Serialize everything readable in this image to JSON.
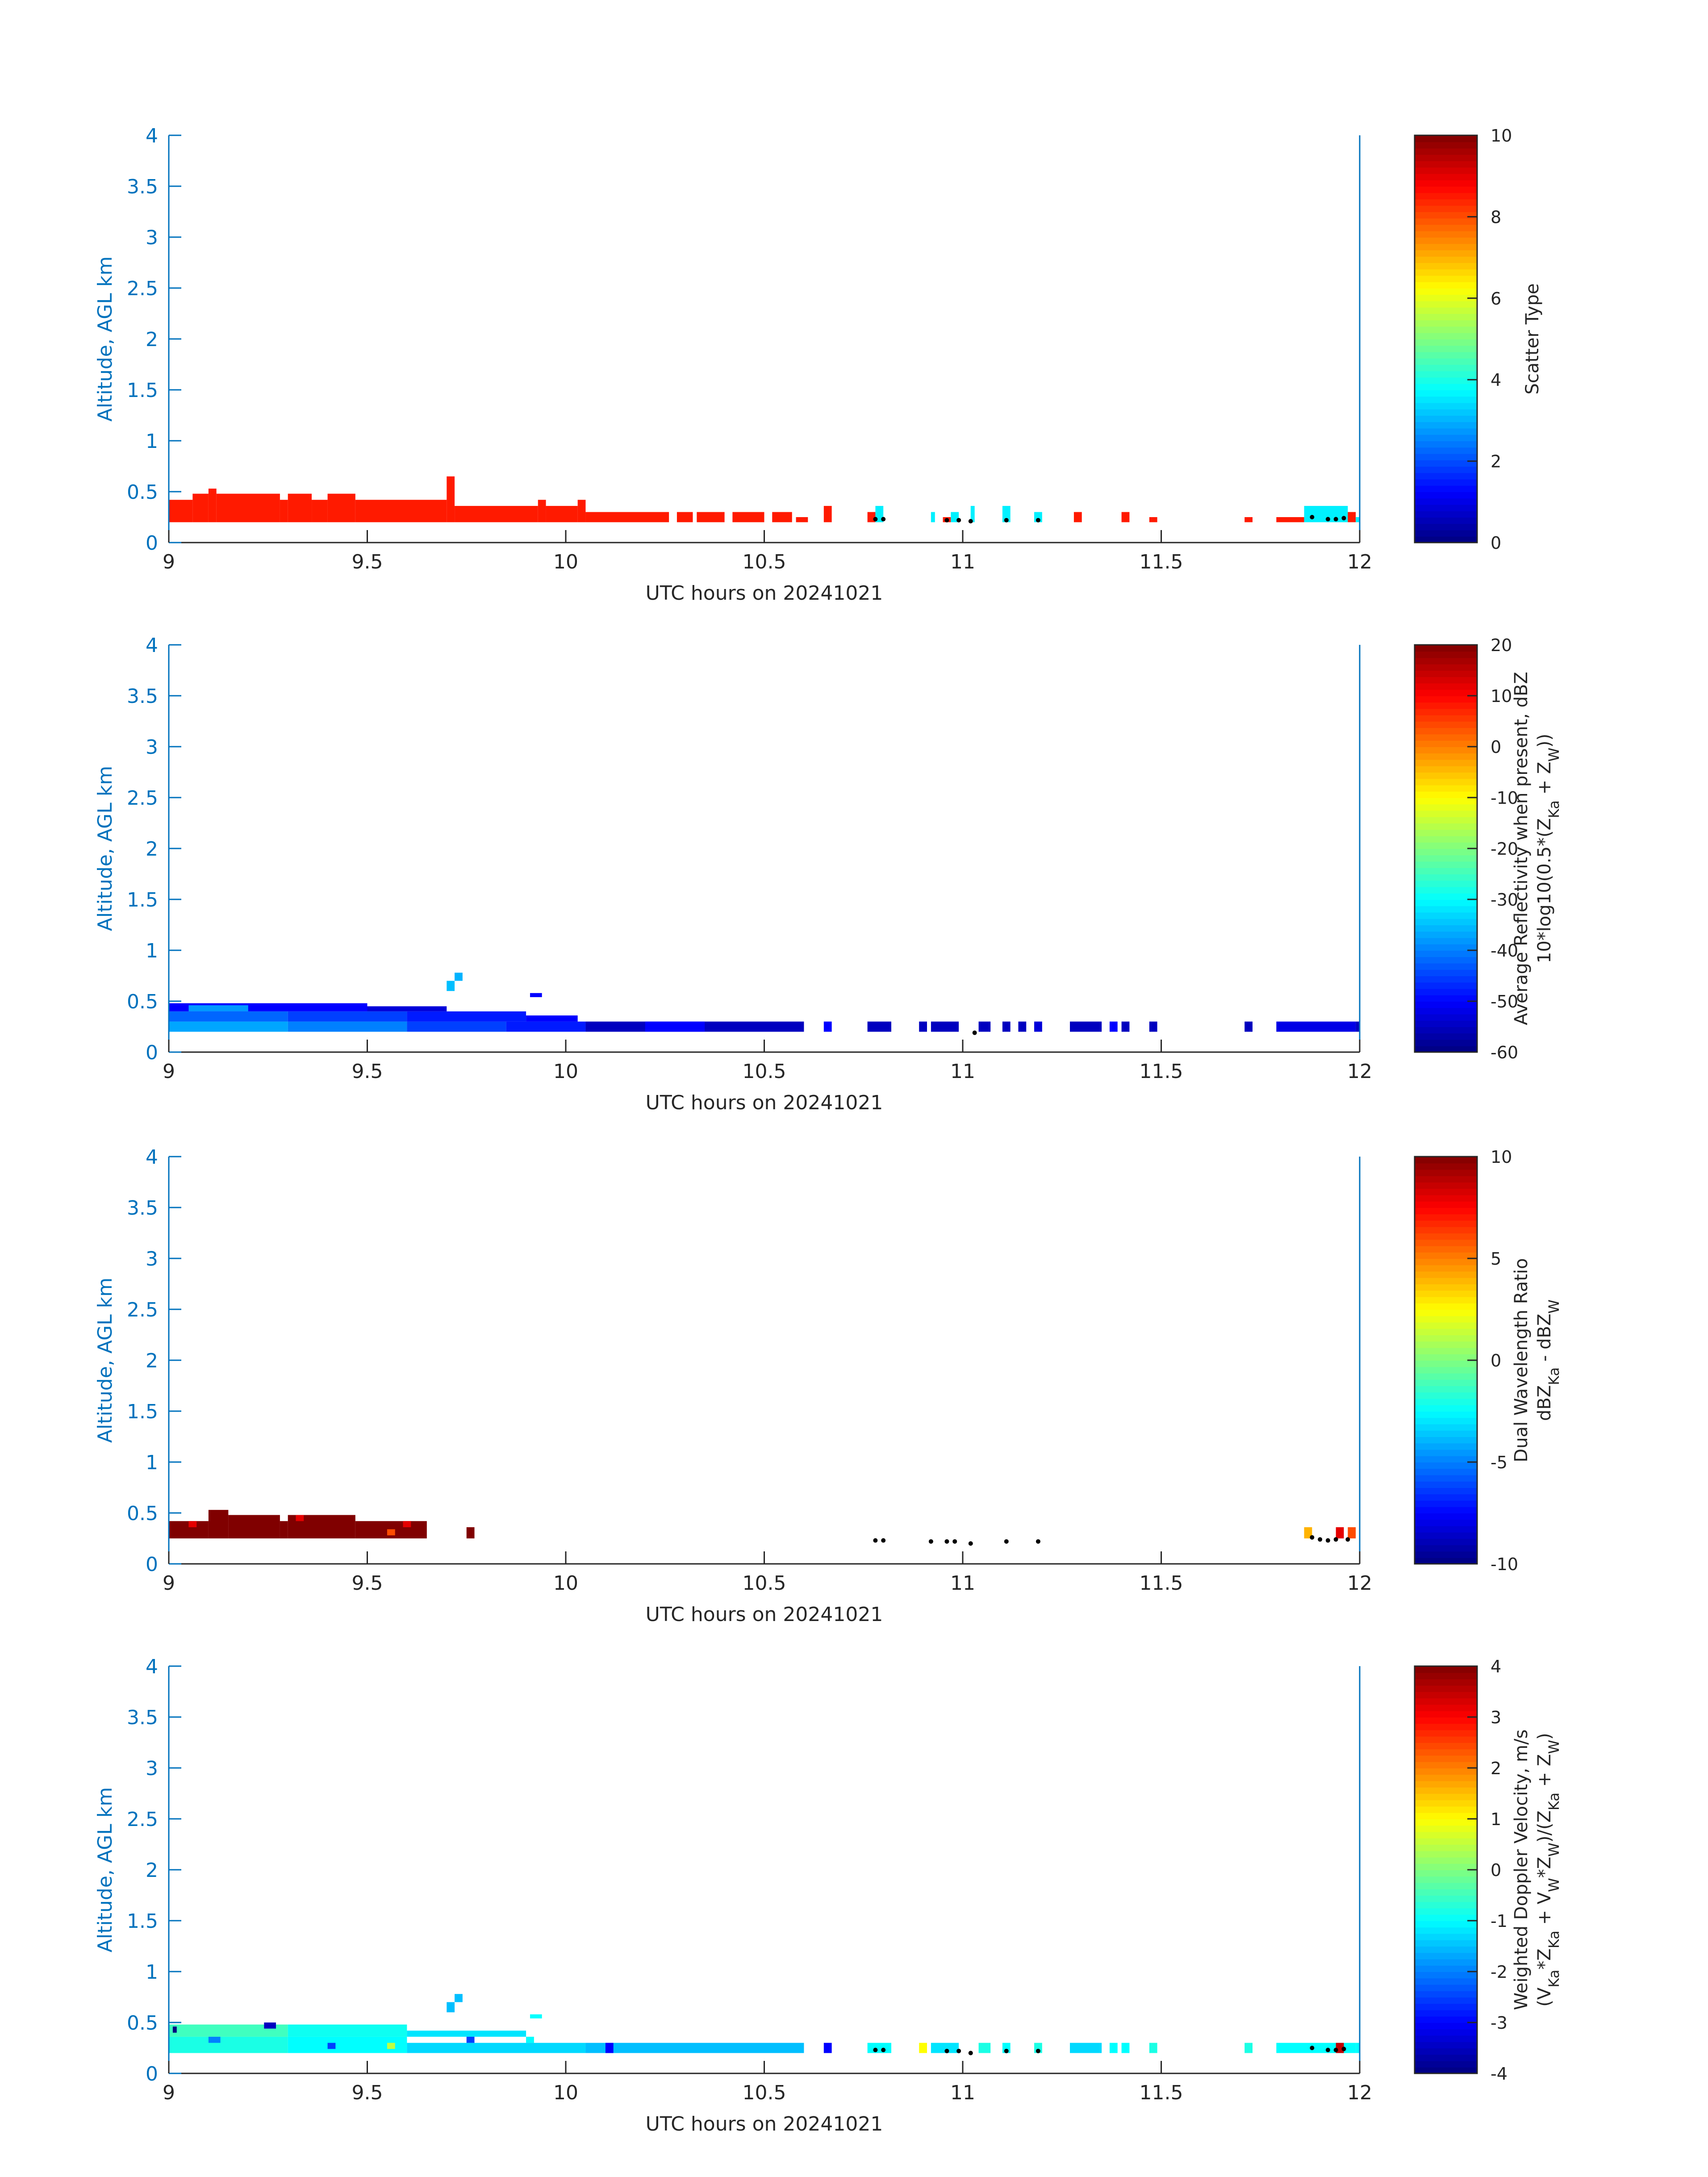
{
  "figure": {
    "x_axis_label": "UTC hours on 20241021",
    "y_axis_label": "Altitude, AGL km",
    "colors": {
      "axis": "#0072BD",
      "text": "#262626",
      "marker": "#000000"
    },
    "colormap": "jet"
  },
  "chart_data": [
    {
      "type": "heatmap",
      "xlabel": "UTC hours on 20241021",
      "ylabel": "Altitude, AGL km",
      "xlim": [
        9,
        12
      ],
      "ylim": [
        0,
        4
      ],
      "x_ticks": [
        "9",
        "9.5",
        "10",
        "10.5",
        "11",
        "11.5",
        "12"
      ],
      "y_ticks": [
        "0",
        "0.5",
        "1",
        "1.5",
        "2",
        "2.5",
        "3",
        "3.5",
        "4"
      ],
      "colorbar": {
        "label_lines": [
          "Scatter Type"
        ],
        "range": [
          0,
          10
        ],
        "ticks": [
          "0",
          "2",
          "4",
          "6",
          "8",
          "10"
        ]
      },
      "cells": [
        [
          9.0,
          9.06,
          0.2,
          0.42,
          8.5
        ],
        [
          9.06,
          9.1,
          0.2,
          0.48,
          8.5
        ],
        [
          9.1,
          9.12,
          0.2,
          0.53,
          8.5
        ],
        [
          9.12,
          9.28,
          0.2,
          0.48,
          8.5
        ],
        [
          9.28,
          9.3,
          0.2,
          0.42,
          8.5
        ],
        [
          9.3,
          9.36,
          0.2,
          0.48,
          8.5
        ],
        [
          9.36,
          9.4,
          0.2,
          0.42,
          8.5
        ],
        [
          9.4,
          9.47,
          0.2,
          0.48,
          8.5
        ],
        [
          9.47,
          9.7,
          0.2,
          0.42,
          8.5
        ],
        [
          9.7,
          9.72,
          0.2,
          0.65,
          8.5
        ],
        [
          9.72,
          9.93,
          0.2,
          0.36,
          8.5
        ],
        [
          9.93,
          9.95,
          0.2,
          0.42,
          8.5
        ],
        [
          9.95,
          10.03,
          0.2,
          0.36,
          8.5
        ],
        [
          10.03,
          10.05,
          0.2,
          0.42,
          8.5
        ],
        [
          10.05,
          10.26,
          0.2,
          0.3,
          8.5
        ],
        [
          10.28,
          10.32,
          0.2,
          0.3,
          8.5
        ],
        [
          10.33,
          10.4,
          0.2,
          0.3,
          8.5
        ],
        [
          10.42,
          10.5,
          0.2,
          0.3,
          8.5
        ],
        [
          10.52,
          10.57,
          0.2,
          0.3,
          8.5
        ],
        [
          10.58,
          10.61,
          0.2,
          0.25,
          8.5
        ],
        [
          10.65,
          10.67,
          0.2,
          0.36,
          8.5
        ],
        [
          10.76,
          10.78,
          0.2,
          0.3,
          8.5
        ],
        [
          10.78,
          10.8,
          0.2,
          0.36,
          3.6
        ],
        [
          10.92,
          10.93,
          0.2,
          0.3,
          3.6
        ],
        [
          10.95,
          10.97,
          0.2,
          0.25,
          8.5
        ],
        [
          10.97,
          10.99,
          0.2,
          0.3,
          3.6
        ],
        [
          11.02,
          11.03,
          0.2,
          0.36,
          3.6
        ],
        [
          11.1,
          11.12,
          0.2,
          0.36,
          3.6
        ],
        [
          11.18,
          11.2,
          0.2,
          0.3,
          3.6
        ],
        [
          11.28,
          11.3,
          0.2,
          0.3,
          8.5
        ],
        [
          11.4,
          11.42,
          0.2,
          0.3,
          8.5
        ],
        [
          11.47,
          11.49,
          0.2,
          0.25,
          8.5
        ],
        [
          11.71,
          11.73,
          0.2,
          0.25,
          8.5
        ],
        [
          11.79,
          11.86,
          0.2,
          0.25,
          8.5
        ],
        [
          11.86,
          11.97,
          0.2,
          0.36,
          3.6
        ],
        [
          11.97,
          11.99,
          0.2,
          0.3,
          8.5
        ],
        [
          11.99,
          12.0,
          0.2,
          0.25,
          3.6
        ]
      ],
      "markers": [
        [
          10.78,
          0.23
        ],
        [
          10.8,
          0.23
        ],
        [
          10.96,
          0.22
        ],
        [
          10.99,
          0.22
        ],
        [
          11.02,
          0.21
        ],
        [
          11.11,
          0.22
        ],
        [
          11.19,
          0.22
        ],
        [
          11.88,
          0.25
        ],
        [
          11.92,
          0.23
        ],
        [
          11.94,
          0.23
        ],
        [
          11.96,
          0.24
        ]
      ]
    },
    {
      "type": "heatmap",
      "xlabel": "UTC hours on 20241021",
      "ylabel": "Altitude, AGL km",
      "xlim": [
        9,
        12
      ],
      "ylim": [
        0,
        4
      ],
      "x_ticks": [
        "9",
        "9.5",
        "10",
        "10.5",
        "11",
        "11.5",
        "12"
      ],
      "y_ticks": [
        "0",
        "0.5",
        "1",
        "1.5",
        "2",
        "2.5",
        "3",
        "3.5",
        "4"
      ],
      "colorbar": {
        "label_lines": [
          "Average Reflectivity when present, dBZ",
          "10*log10(0.5*(Z_Ka + Z_W))"
        ],
        "range": [
          -60,
          20
        ],
        "ticks": [
          "-60",
          "-50",
          "-40",
          "-30",
          "-20",
          "-10",
          "0",
          "10",
          "20"
        ]
      },
      "cells": [
        [
          9.0,
          9.3,
          0.2,
          0.3,
          -37
        ],
        [
          9.3,
          9.6,
          0.2,
          0.3,
          -40
        ],
        [
          9.6,
          9.85,
          0.2,
          0.3,
          -45
        ],
        [
          9.85,
          10.05,
          0.2,
          0.3,
          -48
        ],
        [
          9.0,
          9.3,
          0.3,
          0.4,
          -42
        ],
        [
          9.3,
          9.6,
          0.3,
          0.4,
          -45
        ],
        [
          9.6,
          9.9,
          0.3,
          0.4,
          -48
        ],
        [
          9.9,
          10.03,
          0.3,
          0.36,
          -50
        ],
        [
          9.0,
          9.5,
          0.4,
          0.48,
          -50
        ],
        [
          9.05,
          9.2,
          0.4,
          0.46,
          -38
        ],
        [
          9.5,
          9.7,
          0.4,
          0.45,
          -53
        ],
        [
          9.7,
          9.72,
          0.6,
          0.7,
          -35
        ],
        [
          9.72,
          9.74,
          0.7,
          0.78,
          -36
        ],
        [
          9.91,
          9.94,
          0.54,
          0.58,
          -50
        ],
        [
          10.05,
          10.6,
          0.2,
          0.3,
          -55
        ],
        [
          10.2,
          10.35,
          0.2,
          0.3,
          -50
        ],
        [
          10.65,
          10.67,
          0.2,
          0.3,
          -50
        ],
        [
          10.76,
          10.82,
          0.2,
          0.3,
          -55
        ],
        [
          10.89,
          10.91,
          0.2,
          0.3,
          -55
        ],
        [
          10.92,
          10.99,
          0.2,
          0.3,
          -55
        ],
        [
          11.04,
          11.07,
          0.2,
          0.3,
          -55
        ],
        [
          11.1,
          11.12,
          0.2,
          0.3,
          -55
        ],
        [
          11.14,
          11.16,
          0.2,
          0.3,
          -55
        ],
        [
          11.18,
          11.2,
          0.2,
          0.3,
          -53
        ],
        [
          11.27,
          11.35,
          0.2,
          0.3,
          -55
        ],
        [
          11.37,
          11.39,
          0.2,
          0.3,
          -50
        ],
        [
          11.4,
          11.42,
          0.2,
          0.3,
          -55
        ],
        [
          11.47,
          11.49,
          0.2,
          0.3,
          -55
        ],
        [
          11.71,
          11.73,
          0.2,
          0.3,
          -55
        ],
        [
          11.79,
          11.99,
          0.2,
          0.3,
          -52
        ],
        [
          11.99,
          12.0,
          0.2,
          0.3,
          -55
        ]
      ],
      "markers": [
        [
          11.03,
          0.19
        ]
      ]
    },
    {
      "type": "heatmap",
      "xlabel": "UTC hours on 20241021",
      "ylabel": "Altitude, AGL km",
      "xlim": [
        9,
        12
      ],
      "ylim": [
        0,
        4
      ],
      "x_ticks": [
        "9",
        "9.5",
        "10",
        "10.5",
        "11",
        "11.5",
        "12"
      ],
      "y_ticks": [
        "0",
        "0.5",
        "1",
        "1.5",
        "2",
        "2.5",
        "3",
        "3.5",
        "4"
      ],
      "colorbar": {
        "label_lines": [
          "Dual Wavelength Ratio",
          "dBZ_Ka - dBZ_W"
        ],
        "range": [
          -10,
          10
        ],
        "ticks": [
          "-10",
          "-5",
          "0",
          "5",
          "10"
        ]
      },
      "cells": [
        [
          9.0,
          9.1,
          0.25,
          0.42,
          10
        ],
        [
          9.1,
          9.15,
          0.25,
          0.53,
          10
        ],
        [
          9.15,
          9.28,
          0.25,
          0.48,
          10
        ],
        [
          9.28,
          9.3,
          0.25,
          0.42,
          10
        ],
        [
          9.3,
          9.47,
          0.25,
          0.48,
          10
        ],
        [
          9.47,
          9.65,
          0.25,
          0.42,
          10
        ],
        [
          9.05,
          9.07,
          0.36,
          0.42,
          8
        ],
        [
          9.32,
          9.34,
          0.42,
          0.48,
          8
        ],
        [
          9.55,
          9.57,
          0.28,
          0.34,
          6
        ],
        [
          9.59,
          9.61,
          0.36,
          0.42,
          8
        ],
        [
          9.75,
          9.77,
          0.25,
          0.36,
          10
        ],
        [
          11.86,
          11.88,
          0.25,
          0.36,
          4
        ],
        [
          11.94,
          11.96,
          0.25,
          0.36,
          8
        ],
        [
          11.97,
          11.99,
          0.25,
          0.36,
          6
        ]
      ],
      "markers": [
        [
          10.78,
          0.23
        ],
        [
          10.8,
          0.23
        ],
        [
          10.92,
          0.22
        ],
        [
          10.96,
          0.22
        ],
        [
          10.98,
          0.22
        ],
        [
          11.02,
          0.2
        ],
        [
          11.11,
          0.22
        ],
        [
          11.19,
          0.22
        ],
        [
          11.88,
          0.26
        ],
        [
          11.9,
          0.24
        ],
        [
          11.92,
          0.23
        ],
        [
          11.94,
          0.24
        ],
        [
          11.97,
          0.24
        ]
      ]
    },
    {
      "type": "heatmap",
      "xlabel": "UTC hours on 20241021",
      "ylabel": "Altitude, AGL km",
      "xlim": [
        9,
        12
      ],
      "ylim": [
        0,
        4
      ],
      "x_ticks": [
        "9",
        "9.5",
        "10",
        "10.5",
        "11",
        "11.5",
        "12"
      ],
      "y_ticks": [
        "0",
        "0.5",
        "1",
        "1.5",
        "2",
        "2.5",
        "3",
        "3.5",
        "4"
      ],
      "colorbar": {
        "label_lines": [
          "Weighted Doppler Velocity, m/s",
          "(V_Ka*Z_Ka + V_W*Z_W)/(Z_Ka + Z_W)"
        ],
        "range": [
          -4,
          4
        ],
        "ticks": [
          "-4",
          "-3",
          "-2",
          "-1",
          "0",
          "1",
          "2",
          "3",
          "4"
        ]
      },
      "cells": [
        [
          9.0,
          9.3,
          0.2,
          0.36,
          -0.8
        ],
        [
          9.3,
          9.6,
          0.2,
          0.36,
          -1.0
        ],
        [
          9.6,
          10.05,
          0.2,
          0.3,
          -1.3
        ],
        [
          9.0,
          9.3,
          0.36,
          0.48,
          -0.5
        ],
        [
          9.3,
          9.6,
          0.36,
          0.48,
          -0.9
        ],
        [
          9.6,
          9.9,
          0.36,
          0.42,
          -1.2
        ],
        [
          9.24,
          9.27,
          0.44,
          0.5,
          -3.5
        ],
        [
          9.01,
          9.02,
          0.4,
          0.46,
          -4
        ],
        [
          9.1,
          9.13,
          0.3,
          0.36,
          -2.0
        ],
        [
          9.4,
          9.42,
          0.24,
          0.3,
          -2.5
        ],
        [
          9.55,
          9.57,
          0.24,
          0.3,
          0.5
        ],
        [
          9.75,
          9.77,
          0.3,
          0.36,
          -2.5
        ],
        [
          9.9,
          9.92,
          0.3,
          0.36,
          -1.0
        ],
        [
          9.7,
          9.72,
          0.6,
          0.7,
          -1.5
        ],
        [
          9.72,
          9.74,
          0.7,
          0.78,
          -1.5
        ],
        [
          9.91,
          9.94,
          0.54,
          0.58,
          -1.0
        ],
        [
          10.05,
          10.6,
          0.2,
          0.3,
          -1.5
        ],
        [
          10.1,
          10.12,
          0.2,
          0.3,
          -3.0
        ],
        [
          10.65,
          10.67,
          0.2,
          0.3,
          -3.0
        ],
        [
          10.76,
          10.82,
          0.2,
          0.3,
          -1.0
        ],
        [
          10.89,
          10.91,
          0.2,
          0.3,
          1.0
        ],
        [
          10.92,
          10.99,
          0.2,
          0.3,
          -1.2
        ],
        [
          11.04,
          11.07,
          0.2,
          0.3,
          -0.8
        ],
        [
          11.1,
          11.12,
          0.2,
          0.3,
          -1.0
        ],
        [
          11.18,
          11.2,
          0.2,
          0.3,
          -0.8
        ],
        [
          11.27,
          11.35,
          0.2,
          0.3,
          -1.3
        ],
        [
          11.37,
          11.39,
          0.2,
          0.3,
          -1.0
        ],
        [
          11.4,
          11.42,
          0.2,
          0.3,
          -1.0
        ],
        [
          11.47,
          11.49,
          0.2,
          0.3,
          -0.8
        ],
        [
          11.71,
          11.73,
          0.2,
          0.3,
          -0.8
        ],
        [
          11.79,
          11.99,
          0.2,
          0.3,
          -1.0
        ],
        [
          11.94,
          11.96,
          0.2,
          0.3,
          3.5
        ],
        [
          11.99,
          12.0,
          0.2,
          0.3,
          -1.0
        ]
      ],
      "markers": [
        [
          10.78,
          0.23
        ],
        [
          10.8,
          0.23
        ],
        [
          10.96,
          0.22
        ],
        [
          10.99,
          0.22
        ],
        [
          11.02,
          0.2
        ],
        [
          11.11,
          0.22
        ],
        [
          11.19,
          0.22
        ],
        [
          11.88,
          0.25
        ],
        [
          11.92,
          0.23
        ],
        [
          11.94,
          0.23
        ],
        [
          11.96,
          0.24
        ]
      ]
    }
  ]
}
